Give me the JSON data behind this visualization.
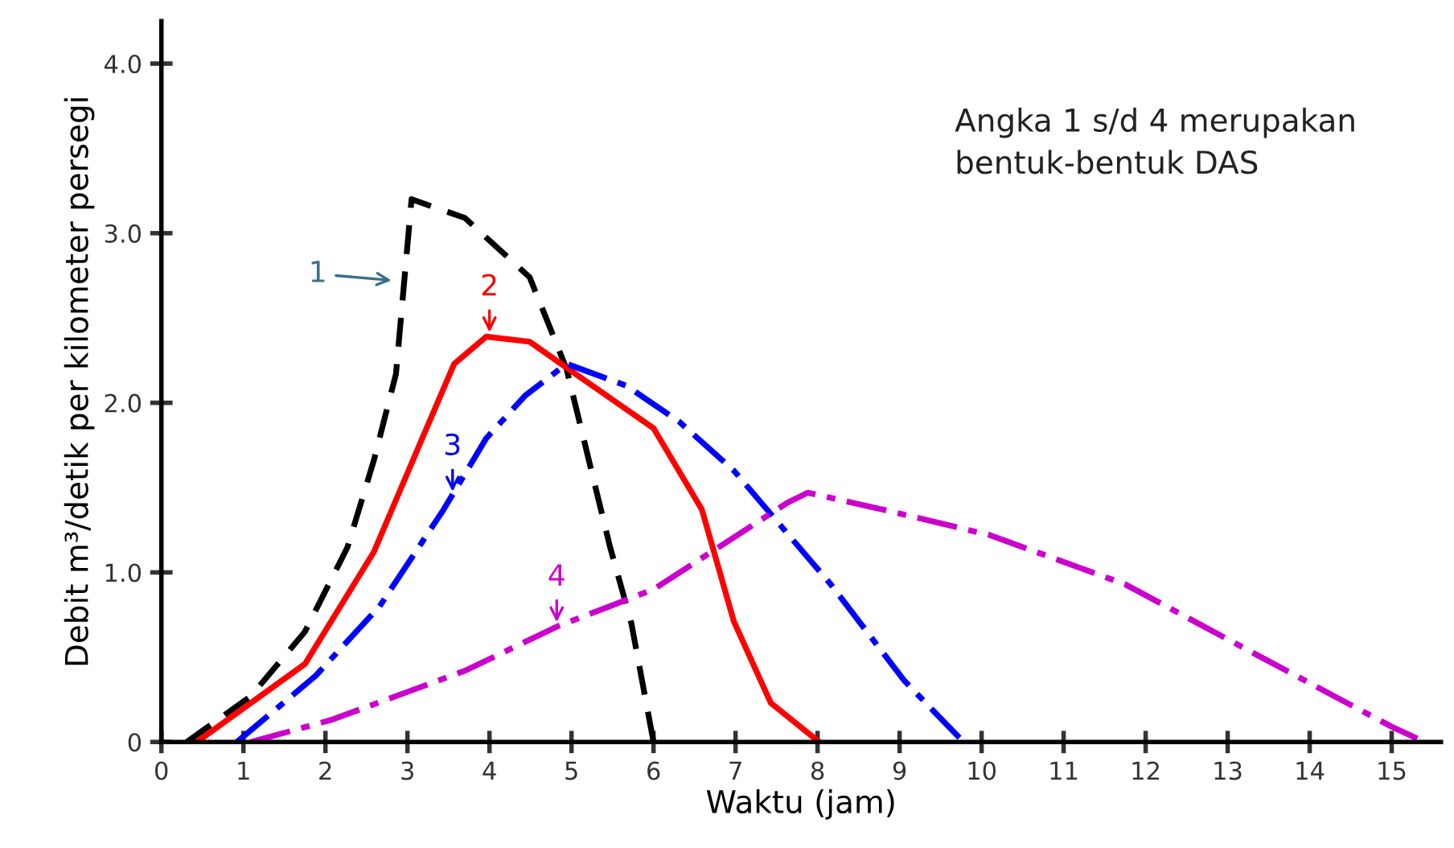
{
  "chart_data": {
    "type": "line",
    "xlabel": "Waktu (jam)",
    "ylabel": "Debit m³/detik per kilometer persegi",
    "xlim": [
      0,
      15.6
    ],
    "ylim": [
      0,
      4.25
    ],
    "xticks": [
      0,
      1,
      2,
      3,
      4,
      5,
      6,
      7,
      8,
      9,
      10,
      11,
      12,
      13,
      14,
      15
    ],
    "yticks": [
      0,
      {
        "value": 1,
        "label": "1.0"
      },
      {
        "value": 2,
        "label": "2.0"
      },
      {
        "value": 3,
        "label": "3.0"
      },
      {
        "value": 4,
        "label": "4.0"
      }
    ],
    "grid": false,
    "legend": false,
    "marker": "none",
    "series": [
      {
        "color": "#000000",
        "line_style": "dashed",
        "x": [
          0.31,
          1.09,
          1.75,
          2.27,
          2.59,
          2.86,
          3.05,
          3.7,
          4.49,
          4.94,
          5.47,
          5.73,
          6.0
        ],
        "values": [
          0,
          0.27,
          0.65,
          1.15,
          1.66,
          2.17,
          3.2,
          3.09,
          2.74,
          2.2,
          1.15,
          0.7,
          0
        ]
      },
      {
        "color": "#ff0000",
        "line_style": "solid",
        "x": [
          0.43,
          1.75,
          2.59,
          3.18,
          3.57,
          3.96,
          4.49,
          5.02,
          6.0,
          6.59,
          6.98,
          7.43,
          8.02
        ],
        "values": [
          0,
          0.46,
          1.12,
          1.79,
          2.23,
          2.39,
          2.36,
          2.18,
          1.85,
          1.37,
          0.71,
          0.23,
          0
        ]
      },
      {
        "color": "#0000ff",
        "line_style": "dashdot",
        "x": [
          0.92,
          1.88,
          2.66,
          3.44,
          3.96,
          4.43,
          4.94,
          5.67,
          6.31,
          6.98,
          7.49,
          8.16,
          9.06,
          9.78
        ],
        "values": [
          0,
          0.39,
          0.8,
          1.37,
          1.79,
          2.04,
          2.23,
          2.1,
          1.89,
          1.6,
          1.31,
          0.93,
          0.36,
          0
        ]
      },
      {
        "color": "#cc00cc",
        "line_style": "dashdot",
        "x": [
          1.09,
          2.07,
          3.7,
          4.82,
          6.0,
          7.63,
          7.88,
          8.8,
          10.1,
          11.75,
          13.37,
          15.0,
          15.4
        ],
        "values": [
          0,
          0.13,
          0.42,
          0.68,
          0.9,
          1.41,
          1.47,
          1.37,
          1.22,
          0.93,
          0.51,
          0.09,
          0
        ]
      }
    ],
    "annotations": [
      {
        "text": "1",
        "x": 2.86,
        "y": 2.72
      },
      {
        "text": "2",
        "x": 4.0,
        "y": 2.39
      },
      {
        "text": "3",
        "x": 3.55,
        "y": 1.45
      },
      {
        "text": "4",
        "x": 4.82,
        "y": 0.68
      },
      "Angka 1 s/d 4 merupakan\nbentuk-bentuk DAS"
    ]
  }
}
